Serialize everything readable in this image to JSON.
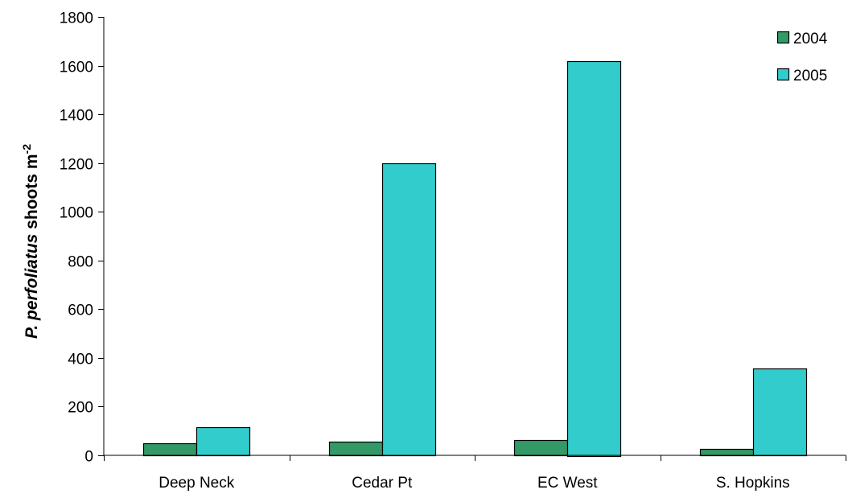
{
  "chart_data": {
    "type": "bar",
    "categories": [
      "Deep Neck",
      "Cedar Pt",
      "EC West",
      "S. Hopkins"
    ],
    "series": [
      {
        "name": "2004",
        "color": "#339966",
        "values": [
          48,
          55,
          62,
          27
        ]
      },
      {
        "name": "2005",
        "color": "#33cccc",
        "values": [
          115,
          1198,
          1620,
          358
        ]
      }
    ],
    "ylabel": {
      "species": "P. perfoliatus",
      "rest": " shoots m",
      "superscript": "-2"
    },
    "xlabel": "",
    "title": "",
    "ylim": [
      0,
      1800
    ],
    "yticks": [
      "0",
      "200",
      "400",
      "600",
      "800",
      "1000",
      "1200",
      "1400",
      "1600",
      "1800"
    ],
    "grid": false,
    "legend_position": "top-right"
  }
}
